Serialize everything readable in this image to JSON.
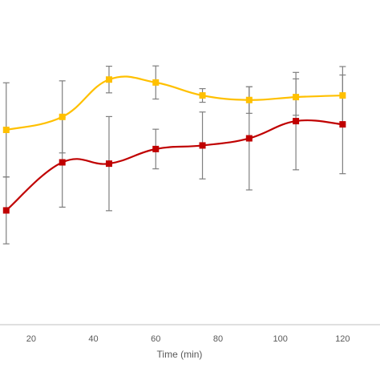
{
  "chart_data": {
    "type": "line",
    "title": "",
    "xlabel": "Time (min)",
    "ylabel": "",
    "xlim": [
      10,
      132
    ],
    "ylim": [
      0,
      100
    ],
    "x_ticks": [
      20,
      40,
      60,
      80,
      100,
      120
    ],
    "x_tick_labels": [
      "20",
      "40",
      "60",
      "80",
      "100",
      "120"
    ],
    "smooth": true,
    "grid": false,
    "legend": "none",
    "error_bar_color": "#7f7f7f",
    "axis_color": "#bfbfbf",
    "series": [
      {
        "color": "#ffc000",
        "marker": "square",
        "x": [
          12,
          30,
          45,
          60,
          75,
          90,
          105,
          120
        ],
        "y": [
          60.0,
          64.0,
          75.5,
          74.6,
          70.6,
          69.2,
          70.1,
          70.6
        ],
        "error": [
          14.5,
          11.1,
          4.1,
          5.1,
          2.1,
          4.1,
          5.6,
          8.9
        ]
      },
      {
        "color": "#c00000",
        "marker": "square",
        "x": [
          12,
          30,
          45,
          60,
          75,
          90,
          105,
          120
        ],
        "y": [
          35.2,
          50.0,
          49.6,
          54.1,
          55.2,
          57.4,
          62.7,
          61.7
        ],
        "error": [
          10.3,
          13.8,
          14.5,
          6.1,
          10.3,
          15.9,
          15.0,
          15.2
        ]
      }
    ]
  }
}
